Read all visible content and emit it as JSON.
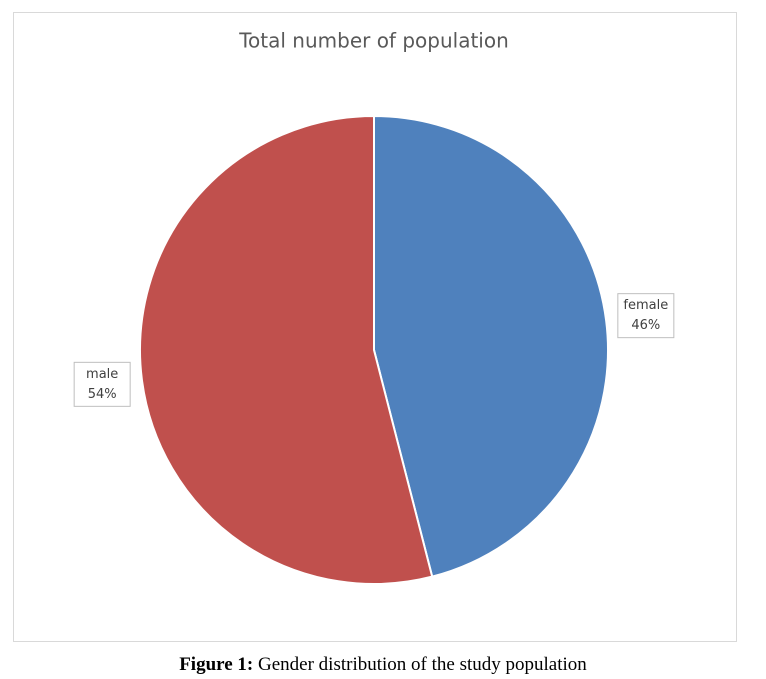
{
  "chart_data": {
    "type": "pie",
    "title": "Total number of population",
    "categories": [
      "female",
      "male"
    ],
    "values": [
      46,
      54
    ],
    "value_labels": [
      "46%",
      "54%"
    ],
    "colors": [
      "#4f81bd",
      "#c0504d"
    ]
  },
  "caption": {
    "label": "Figure 1:",
    "text": "Gender distribution of the study population"
  }
}
